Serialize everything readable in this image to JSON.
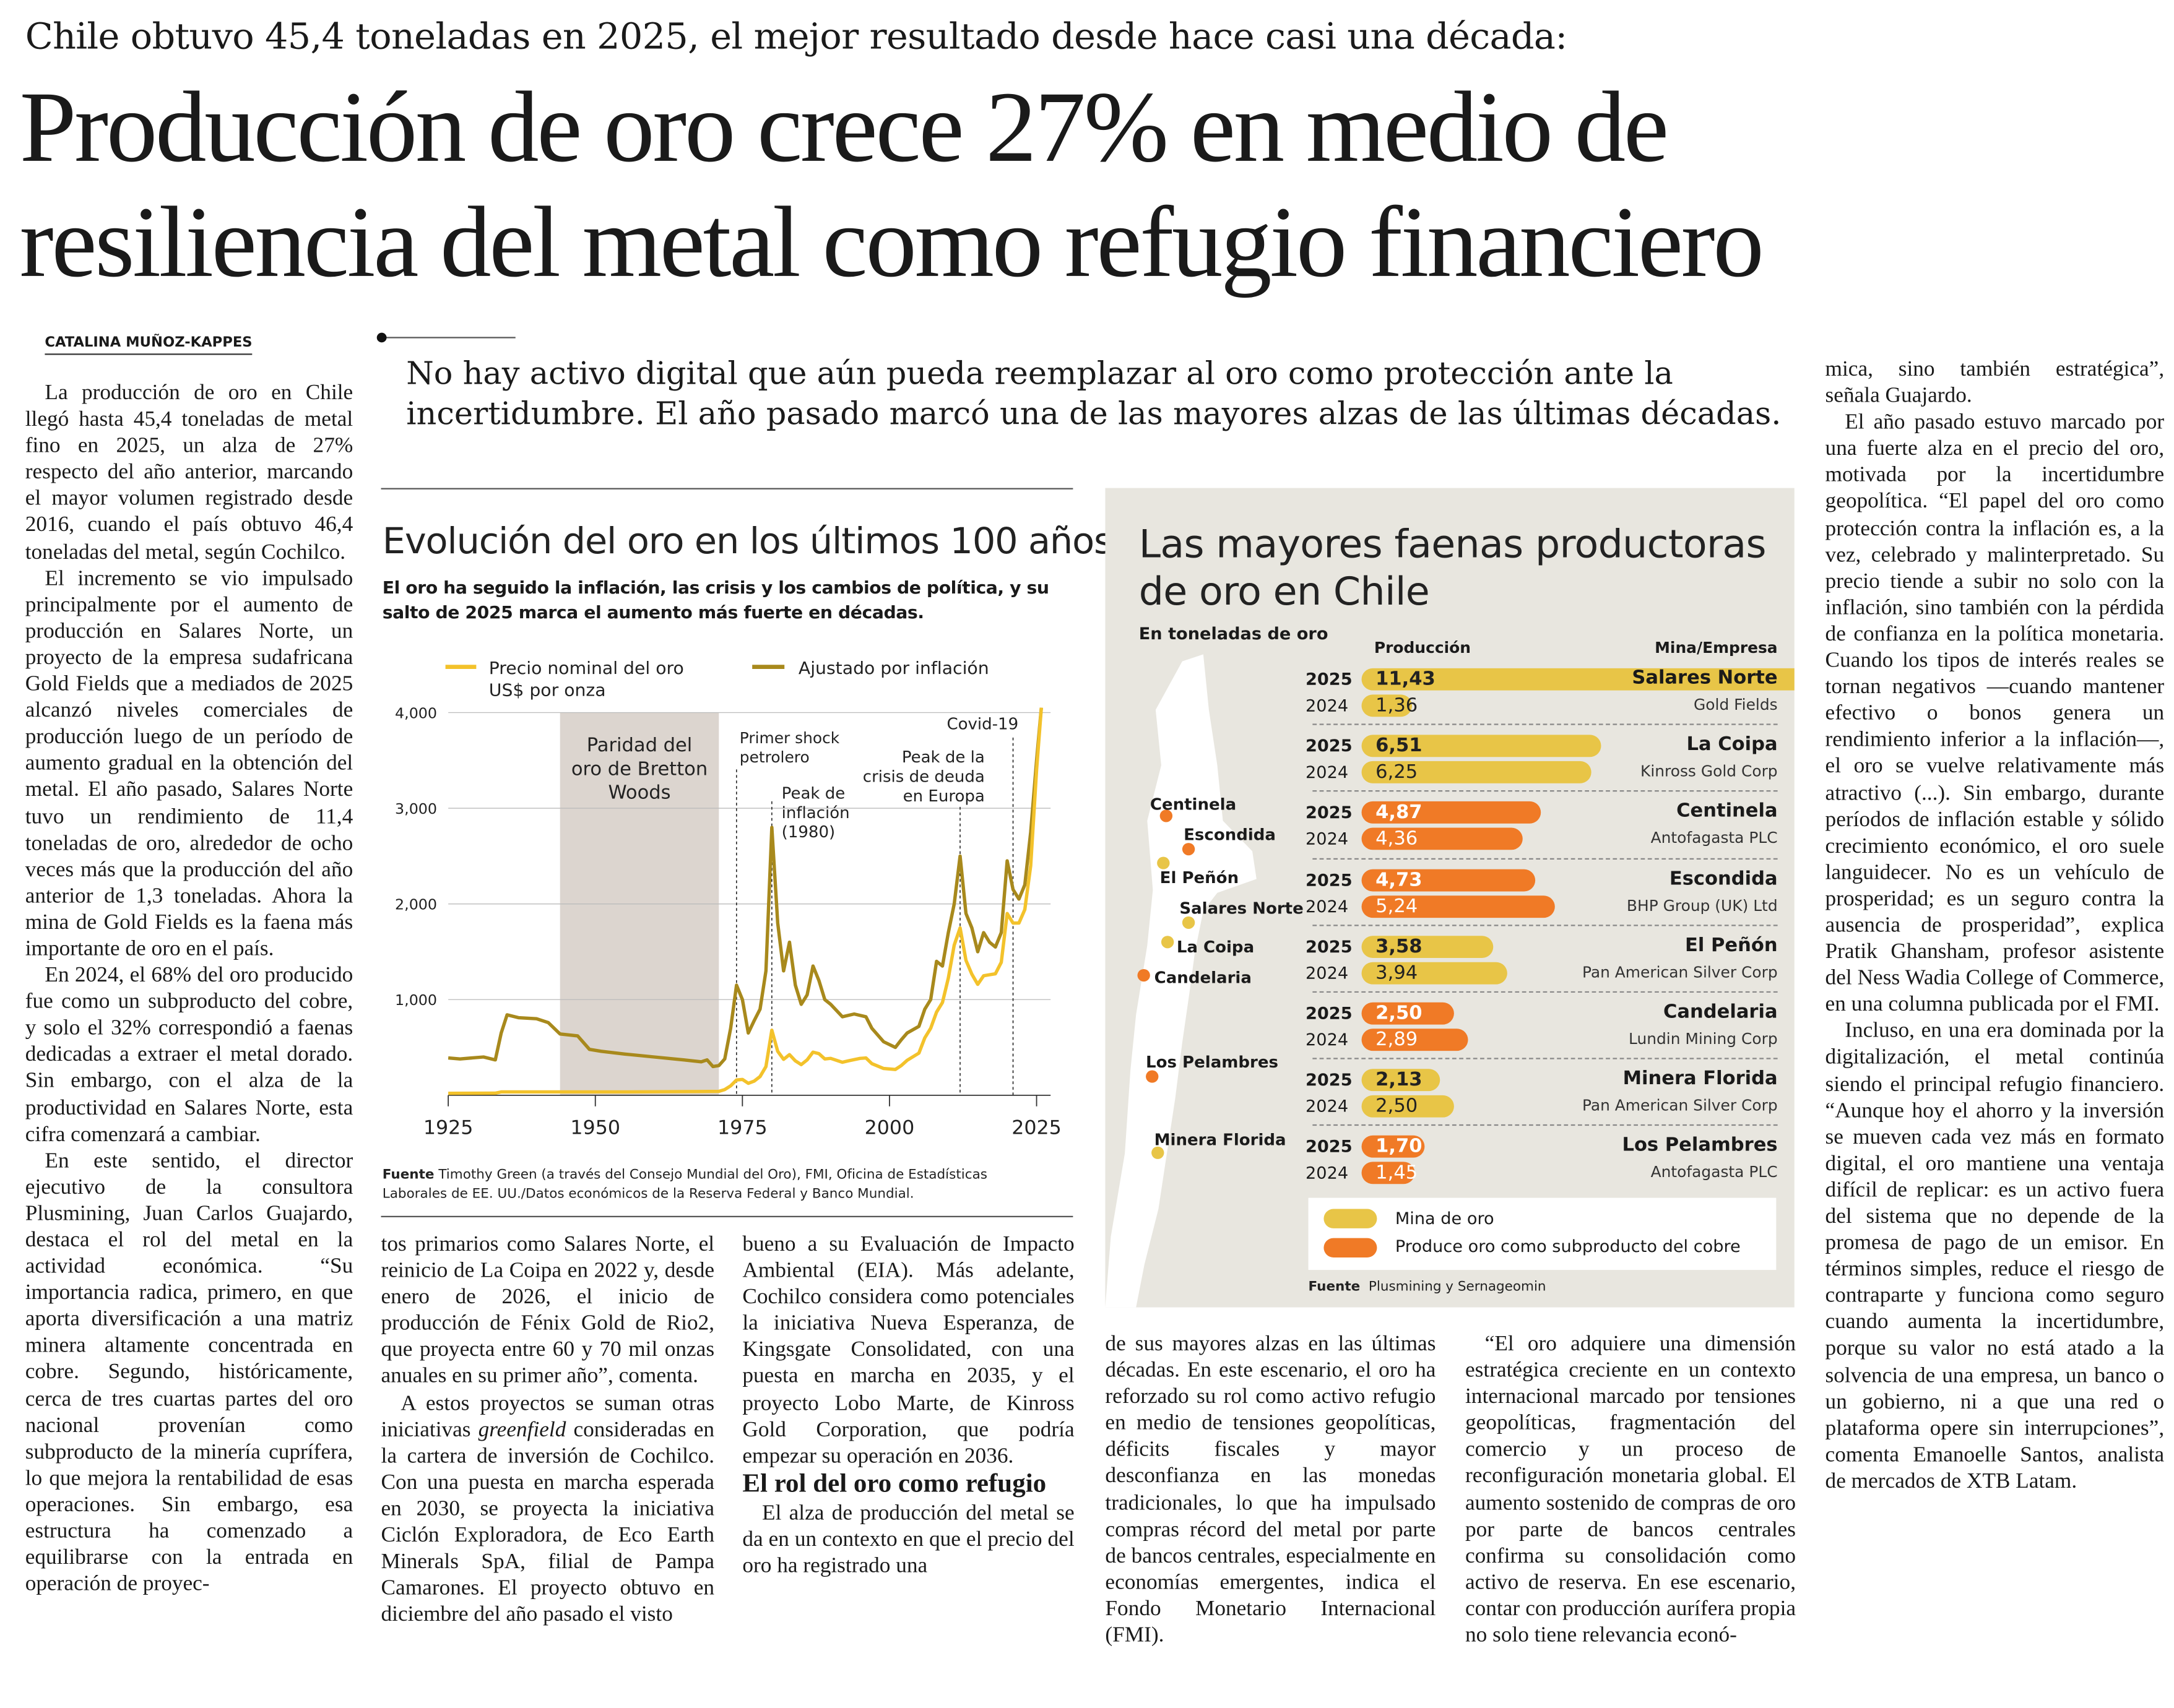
{
  "kicker": "Chile obtuvo 45,4 toneladas en 2025, el mejor resultado desde hace casi una década:",
  "headline": {
    "line1": "Producción de oro crece 27% en medio de",
    "line2": "resiliencia del metal como refugio financiero"
  },
  "byline": "CATALINA MUÑOZ-KAPPES",
  "pull_quote": "No hay activo digital que aún pueda reemplazar al oro como protección ante la incertidumbre. El año pasado marcó una de las mayores alzas de las últimas décadas.",
  "body": {
    "col1": [
      "La producción de oro en Chile llegó hasta 45,4 toneladas de metal fino en 2025, un alza de 27% respecto del año anterior, marcando el mayor volumen registrado desde 2016, cuando el país obtuvo 46,4 toneladas del metal, según Cochilco.",
      "El incremento se vio impulsado principalmente por el aumento de producción en Salares Norte, un proyecto de la empresa sudafricana Gold Fields que a mediados de 2025 alcanzó niveles comerciales de producción luego de un período de aumento gradual en la obtención del metal. El año pasado, Salares Norte tuvo un rendimiento de 11,4 toneladas de oro, alrededor de ocho veces más que la producción del año anterior de 1,3 toneladas. Ahora la mina de Gold Fields es la faena más importante de oro en el país.",
      "En 2024, el 68% del oro producido fue como un subproducto del cobre, y solo el 32% correspondió a faenas dedicadas a extraer el metal dorado. Sin embargo, con el alza de la productividad en Salares Norte, esta cifra comenzará a cambiar.",
      "En este sentido, el director ejecutivo de la consultora Plusmining, Juan Carlos Guajardo, destaca el rol del metal en la actividad económica. “Su importancia radica, primero, en que aporta diversificación a una matriz minera altamente concentrada en cobre. Segundo, históricamente, cerca de tres cuartas partes del oro nacional provenían como subproducto de la minería cuprífera, lo que mejora la rentabilidad de esas operaciones. Sin embargo, esa estructura ha comenzado a equilibrarse con la entrada en operación de proyec-"
    ],
    "col2": {
      "p1": "tos primarios como Salares Norte, el reinicio de La Coipa en 2022 y, desde enero de 2026, el inicio de producción de Fénix Gold de Rio2, que proyecta entre 60 y 70 mil onzas anuales en su primer año”, comenta.",
      "p2a": "A estos proyectos se suman otras iniciativas ",
      "p2b": "greenfield",
      "p2c": " consideradas en la cartera de inversión de Cochilco. Con una puesta en marcha esperada en 2030, se proyecta la iniciativa Ciclón Exploradora, de Eco Earth Minerals SpA, filial de Pampa Camarones. El proyecto obtuvo en diciembre del año pasado el visto"
    },
    "col3": {
      "p1": "bueno a su Evaluación de Impacto Ambiental (EIA). Más adelante, Cochilco considera como potenciales la iniciativa Nueva Esperanza, de Kingsgate Consolidated, con una puesta en marcha en 2035, y el proyecto Lobo Marte, de Kinross Gold Corporation, que podría empezar su operación en 2036.",
      "subhead": "El rol del oro como refugio",
      "p2": "El alza de producción del metal se da en un contexto en que el precio del oro ha registrado una"
    },
    "col4": "de sus mayores alzas en las últimas décadas. En este escenario, el oro ha reforzado su rol como activo refugio en medio de tensiones geopolíticas, déficits fiscales y mayor desconfianza en las monedas tradicionales, lo que ha impulsado compras récord del metal por parte de bancos centrales, especialmente en economías emergentes, indica el Fondo Monetario Internacional (FMI).",
    "col5": "“El oro adquiere una dimensión estratégica creciente en un contexto internacional marcado por tensiones geopolíticas, fragmentación del comercio y un proceso de reconfiguración monetaria global. El aumento sostenido de compras de oro por parte de bancos centrales confirma su consolidación como activo de reserva. En ese escenario, contar con producción aurífera propia no solo tiene relevancia econó-",
    "col6": [
      "mica, sino también estratégica”, señala Guajardo.",
      "El año pasado estuvo marcado por una fuerte alza en el precio del oro, motivada por la incertidumbre geopolítica. “El papel del oro como protección contra la inflación es, a la vez, celebrado y malinterpretado. Su precio tiende a subir no solo con la inflación, sino también con la pérdida de confianza en la política monetaria. Cuando los tipos de interés reales se tornan negativos —cuando mantener efectivo o bonos genera un rendimiento inferior a la inflación—, el oro se vuelve relativamente más atractivo (...). Sin embargo, durante períodos de inflación estable y sólido crecimiento económico, el oro suele languidecer. No es un vehículo de prosperidad; es un seguro contra la ausencia de prosperidad”, explica Pratik Ghansham, profesor asistente del Ness Wadia College of Commerce, en una columna publicada por el FMI.",
      "Incluso, en una era dominada por la digitalización, el metal continúa siendo el principal refugio financiero. “Aunque hoy el ahorro y la inversión se mueven cada vez más en formato digital, el oro mantiene una ventaja difícil de replicar: es un activo fuera del sistema que no depende de la promesa de pago de un emisor. En términos simples, reduce el riesgo de contraparte y funciona como seguro cuando aumenta la incertidumbre, porque su valor no está atado a la solvencia de una empresa, un banco o un gobierno, ni a que una red o plataforma opere sin interrupciones”, comenta Emanoelle Santos, analista de mercados de XTB Latam."
    ]
  },
  "chart_data": [
    {
      "type": "line",
      "title": "Evolución del oro en los últimos 100 años",
      "subtitle": "El oro ha seguido la inflación, las crisis y los cambios de política, y su salto de 2025 marca el aumento más fuerte en décadas.",
      "legend": [
        "Precio nominal del oro",
        "US$ por onza",
        "Ajustado por inflación"
      ],
      "xlim": [
        1925,
        2027
      ],
      "ylim": [
        0,
        4000
      ],
      "x_ticks": [
        "1925",
        "1950",
        "1975",
        "2000",
        "2025"
      ],
      "y_ticks": [
        "1,000",
        "2,000",
        "3,000",
        "4,000"
      ],
      "colors": {
        "nominal": "#f3c22b",
        "adjusted": "#a8891c",
        "shade": "#dcd5cf"
      },
      "series": [
        {
          "name": "Precio nominal del oro US$ por onza",
          "points": [
            [
              1925,
              20
            ],
            [
              1933,
              22
            ],
            [
              1934,
              35
            ],
            [
              1945,
              35
            ],
            [
              1955,
              35
            ],
            [
              1968,
              39
            ],
            [
              1971,
              41
            ],
            [
              1972,
              60
            ],
            [
              1973,
              98
            ],
            [
              1974,
              160
            ],
            [
              1975,
              165
            ],
            [
              1976,
              125
            ],
            [
              1977,
              148
            ],
            [
              1978,
              195
            ],
            [
              1979,
              300
            ],
            [
              1980,
              680
            ],
            [
              1981,
              460
            ],
            [
              1982,
              375
            ],
            [
              1983,
              425
            ],
            [
              1984,
              360
            ],
            [
              1985,
              320
            ],
            [
              1986,
              370
            ],
            [
              1987,
              450
            ],
            [
              1988,
              435
            ],
            [
              1989,
              380
            ],
            [
              1990,
              385
            ],
            [
              1992,
              345
            ],
            [
              1993,
              360
            ],
            [
              1995,
              385
            ],
            [
              1996,
              390
            ],
            [
              1997,
              330
            ],
            [
              1999,
              280
            ],
            [
              2001,
              270
            ],
            [
              2002,
              310
            ],
            [
              2003,
              365
            ],
            [
              2005,
              440
            ],
            [
              2006,
              600
            ],
            [
              2007,
              700
            ],
            [
              2008,
              870
            ],
            [
              2009,
              970
            ],
            [
              2010,
              1225
            ],
            [
              2011,
              1570
            ],
            [
              2012,
              1750
            ],
            [
              2013,
              1410
            ],
            [
              2014,
              1265
            ],
            [
              2015,
              1160
            ],
            [
              2016,
              1250
            ],
            [
              2017,
              1260
            ],
            [
              2018,
              1270
            ],
            [
              2019,
              1390
            ],
            [
              2020,
              1900
            ],
            [
              2021,
              1800
            ],
            [
              2022,
              1800
            ],
            [
              2023,
              1940
            ],
            [
              2024,
              2400
            ],
            [
              2025,
              3400
            ],
            [
              2025.8,
              4050
            ]
          ]
        },
        {
          "name": "Ajustado por inflación",
          "points": [
            [
              1925,
              390
            ],
            [
              1927,
              380
            ],
            [
              1931,
              400
            ],
            [
              1933,
              370
            ],
            [
              1934,
              650
            ],
            [
              1935,
              840
            ],
            [
              1937,
              810
            ],
            [
              1940,
              800
            ],
            [
              1942,
              760
            ],
            [
              1944,
              640
            ],
            [
              1947,
              620
            ],
            [
              1949,
              480
            ],
            [
              1951,
              460
            ],
            [
              1955,
              430
            ],
            [
              1960,
              400
            ],
            [
              1965,
              370
            ],
            [
              1968,
              350
            ],
            [
              1969,
              370
            ],
            [
              1970,
              300
            ],
            [
              1971,
              310
            ],
            [
              1972,
              380
            ],
            [
              1973,
              700
            ],
            [
              1974,
              1150
            ],
            [
              1975,
              1000
            ],
            [
              1976,
              650
            ],
            [
              1977,
              780
            ],
            [
              1978,
              900
            ],
            [
              1979,
              1300
            ],
            [
              1980,
              2800
            ],
            [
              1981,
              1800
            ],
            [
              1982,
              1300
            ],
            [
              1983,
              1600
            ],
            [
              1984,
              1150
            ],
            [
              1985,
              950
            ],
            [
              1986,
              1050
            ],
            [
              1987,
              1350
            ],
            [
              1988,
              1200
            ],
            [
              1989,
              1000
            ],
            [
              1990,
              950
            ],
            [
              1992,
              820
            ],
            [
              1994,
              850
            ],
            [
              1996,
              820
            ],
            [
              1997,
              700
            ],
            [
              1999,
              560
            ],
            [
              2001,
              500
            ],
            [
              2002,
              580
            ],
            [
              2003,
              650
            ],
            [
              2005,
              720
            ],
            [
              2006,
              900
            ],
            [
              2007,
              1000
            ],
            [
              2008,
              1400
            ],
            [
              2009,
              1350
            ],
            [
              2010,
              1700
            ],
            [
              2011,
              2000
            ],
            [
              2012,
              2500
            ],
            [
              2013,
              1900
            ],
            [
              2014,
              1750
            ],
            [
              2015,
              1500
            ],
            [
              2016,
              1700
            ],
            [
              2017,
              1600
            ],
            [
              2018,
              1550
            ],
            [
              2019,
              1700
            ],
            [
              2020,
              2450
            ],
            [
              2021,
              2150
            ],
            [
              2022,
              2050
            ],
            [
              2023,
              2200
            ],
            [
              2024,
              2750
            ],
            [
              2025,
              3500
            ],
            [
              2025.8,
              4050
            ]
          ]
        }
      ],
      "shaded_region": {
        "from": 1944,
        "to": 1971,
        "label": [
          "Paridad del",
          "oro de Bretton",
          "Woods"
        ]
      },
      "annotations": [
        {
          "x": 1974,
          "lines": [
            "Primer shock",
            "petrolero"
          ]
        },
        {
          "x": 1980,
          "lines": [
            "Peak de",
            "inflación",
            "(1980)"
          ]
        },
        {
          "x": 2012,
          "lines": [
            "Peak de la",
            "crisis de deuda",
            "en Europa"
          ]
        },
        {
          "x": 2021,
          "lines": [
            "Covid-19"
          ]
        }
      ],
      "source_label": "Fuente",
      "source": "Timothy Green (a través del Consejo Mundial del Oro), FMI, Oficina de Estadísticas Laborales de EE. UU./Datos económicos de la Reserva Federal y Banco Mundial."
    },
    {
      "type": "bar",
      "title": "Las mayores faenas productoras de oro en Chile",
      "unit": "En toneladas de oro",
      "col_production": "Producción",
      "col_mine": "Mina/Empresa",
      "colors": {
        "gold_mine": "#e8c547",
        "copper_byproduct": "#f07a26"
      },
      "rows": [
        {
          "mine": "Salares Norte",
          "company": "Gold Fields",
          "type": "gold_mine",
          "y2025": 11.43,
          "y2024": 1.36,
          "l2025": "11,43",
          "l2024": "1,36"
        },
        {
          "mine": "La Coipa",
          "company": "Kinross Gold Corp",
          "type": "gold_mine",
          "y2025": 6.51,
          "y2024": 6.25,
          "l2025": "6,51",
          "l2024": "6,25"
        },
        {
          "mine": "Centinela",
          "company": "Antofagasta PLC",
          "type": "copper_byproduct",
          "y2025": 4.87,
          "y2024": 4.36,
          "l2025": "4,87",
          "l2024": "4,36"
        },
        {
          "mine": "Escondida",
          "company": "BHP Group (UK) Ltd",
          "type": "copper_byproduct",
          "y2025": 4.73,
          "y2024": 5.24,
          "l2025": "4,73",
          "l2024": "5,24"
        },
        {
          "mine": "El Peñón",
          "company": "Pan American Silver Corp",
          "type": "gold_mine",
          "y2025": 3.58,
          "y2024": 3.94,
          "l2025": "3,58",
          "l2024": "3,94"
        },
        {
          "mine": "Candelaria",
          "company": "Lundin Mining Corp",
          "type": "copper_byproduct",
          "y2025": 2.5,
          "y2024": 2.89,
          "l2025": "2,50",
          "l2024": "2,89"
        },
        {
          "mine": "Minera Florida",
          "company": "Pan American Silver Corp",
          "type": "gold_mine",
          "y2025": 2.13,
          "y2024": 2.5,
          "l2025": "2,13",
          "l2024": "2,50"
        },
        {
          "mine": "Los Pelambres",
          "company": "Antofagasta PLC",
          "type": "copper_byproduct",
          "y2025": 1.7,
          "y2024": 1.45,
          "l2025": "1,70",
          "l2024": "1,45"
        }
      ],
      "year_labels": [
        "2025",
        "2024"
      ],
      "legend": [
        "Mina de oro",
        "Produce oro como subproducto del cobre"
      ],
      "map_labels": [
        "Centinela",
        "Escondida",
        "El Peñón",
        "Salares Norte",
        "La Coipa",
        "Candelaria",
        "Los Pelambres",
        "Minera Florida"
      ],
      "source_label": "Fuente",
      "source": "Plusmining y Sernageomin"
    }
  ]
}
